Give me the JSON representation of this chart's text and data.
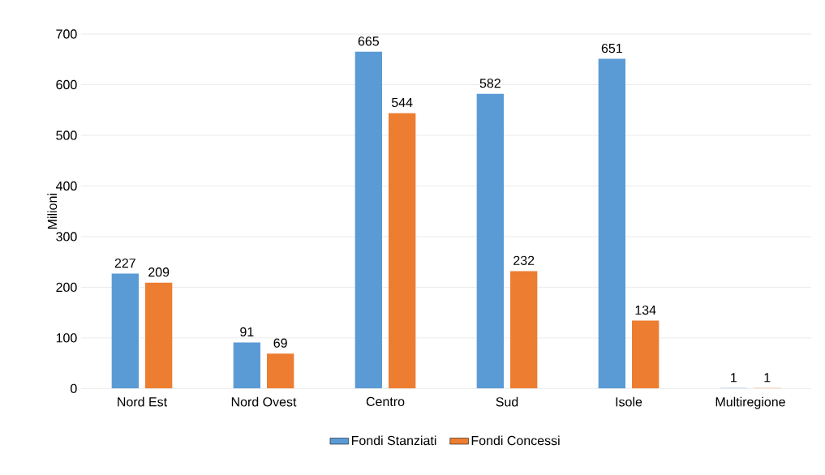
{
  "chart_data": {
    "type": "bar",
    "ylabel": "Milioni",
    "categories": [
      "Nord Est",
      "Nord Ovest",
      "Centro",
      "Sud",
      "Isole",
      "Multiregione"
    ],
    "series": [
      {
        "name": "Fondi Stanziati",
        "color": "#5b9bd5",
        "values": [
          227,
          91,
          665,
          582,
          651,
          1
        ]
      },
      {
        "name": "Fondi Concessi",
        "color": "#ed7d31",
        "values": [
          209,
          69,
          544,
          232,
          134,
          1
        ]
      }
    ],
    "ylim": [
      0,
      700
    ],
    "yticks": [
      0,
      100,
      200,
      300,
      400,
      500,
      600,
      700
    ],
    "grid": "y",
    "legend": "bottom",
    "data_labels": true
  }
}
